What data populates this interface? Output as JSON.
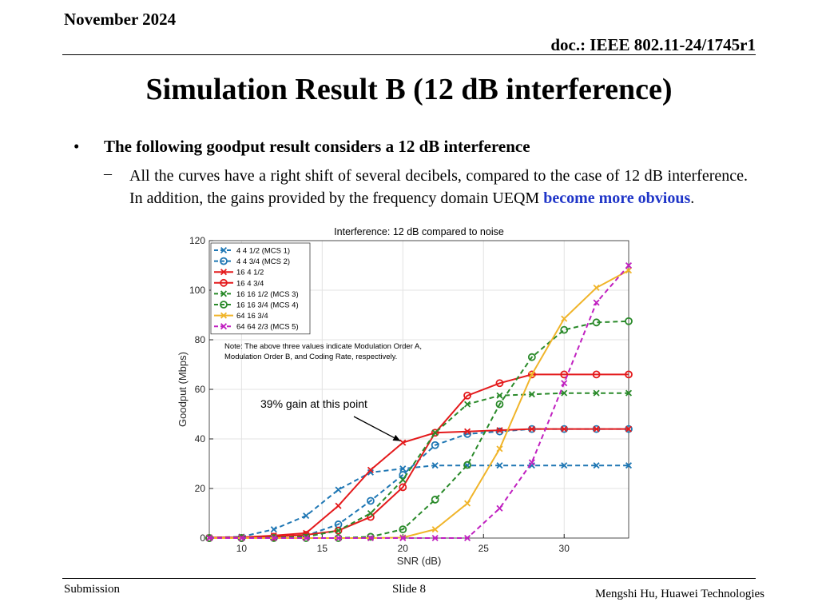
{
  "header": {
    "date": "November 2024",
    "doc": "doc.: IEEE 802.11-24/1745r1"
  },
  "slide_title": "Simulation Result B (12 dB interference)",
  "bullet": {
    "marker": "•",
    "text": "The following goodput result considers a 12 dB interference",
    "sub_marker": "–",
    "sub_text": "All the curves have a right shift of several decibels, compared to the case of 12 dB interference. In addition, the gains provided by the frequency domain UEQM ",
    "sub_highlight": "become more obvious",
    "sub_end": "."
  },
  "footer": {
    "left": "Submission",
    "center": "Slide 8",
    "right": "Mengshi Hu, Huawei Technologies"
  },
  "chart_data": {
    "type": "line",
    "title": "Interference: 12 dB compared to noise",
    "xlabel": "SNR (dB)",
    "ylabel": "Goodput (Mbps)",
    "xlim": [
      8,
      34
    ],
    "ylim": [
      0,
      120
    ],
    "xticks": [
      10,
      15,
      20,
      25,
      30
    ],
    "yticks": [
      0,
      20,
      40,
      60,
      80,
      100,
      120
    ],
    "grid": true,
    "legend_position": "top-left",
    "x": [
      8,
      10,
      12,
      14,
      16,
      18,
      20,
      22,
      24,
      26,
      28,
      30,
      32,
      34
    ],
    "series": [
      {
        "name": "4 4 1/2 (MCS 1)",
        "color": "#1f77b4",
        "dash": true,
        "marker": "x",
        "values": [
          0.2,
          0.5,
          3.5,
          9,
          19.5,
          26.5,
          28,
          29.3,
          29.3,
          29.3,
          29.3,
          29.3,
          29.3,
          29.3
        ]
      },
      {
        "name": "4 4 3/4 (MCS 2)",
        "color": "#1f77b4",
        "dash": true,
        "marker": "o",
        "values": [
          0,
          0,
          0.3,
          1,
          5.5,
          15,
          25.5,
          37.5,
          42,
          43,
          44,
          44,
          44,
          44
        ]
      },
      {
        "name": "16 4 1/2",
        "color": "#e41a1c",
        "dash": false,
        "marker": "x",
        "values": [
          0.2,
          0.3,
          1,
          2,
          13,
          27.5,
          38.5,
          42.5,
          43,
          43.5,
          44,
          44,
          44,
          44
        ]
      },
      {
        "name": "16 4 3/4",
        "color": "#e41a1c",
        "dash": false,
        "marker": "o",
        "values": [
          0,
          0,
          0.5,
          1.3,
          3,
          8.5,
          20.5,
          42.5,
          57.5,
          62.5,
          66,
          66,
          66,
          66
        ]
      },
      {
        "name": "16 16 1/2 (MCS 3)",
        "color": "#2a8a2a",
        "dash": true,
        "marker": "x",
        "values": [
          0,
          0,
          0.2,
          0.5,
          3,
          10,
          23.5,
          42.5,
          54,
          57.5,
          58,
          58.5,
          58.5,
          58.5
        ]
      },
      {
        "name": "16 16 3/4 (MCS 4)",
        "color": "#2a8a2a",
        "dash": true,
        "marker": "o",
        "values": [
          0,
          0,
          0,
          0,
          0,
          0.5,
          3.5,
          15.5,
          29.5,
          54,
          73,
          84,
          87,
          87.5
        ]
      },
      {
        "name": "64 16 3/4",
        "color": "#f0b429",
        "dash": false,
        "marker": "x",
        "values": [
          0,
          0,
          0,
          0,
          0,
          0,
          0.2,
          3.5,
          14,
          36,
          66,
          88.5,
          101,
          108
        ]
      },
      {
        "name": "64 64 2/3 (MCS 5)",
        "color": "#c020c0",
        "dash": true,
        "marker": "x",
        "values": [
          0,
          0,
          0,
          0,
          0,
          0,
          0,
          0,
          0,
          12,
          30.5,
          62.5,
          95,
          110
        ]
      }
    ],
    "note": "Note: The above three values indicate Modulation Order A, Modulation Order B, and Coding Rate, respectively.",
    "annotation": {
      "text": "39% gain at this point",
      "arrow_to": {
        "x": 20,
        "y": 38.5
      }
    }
  }
}
